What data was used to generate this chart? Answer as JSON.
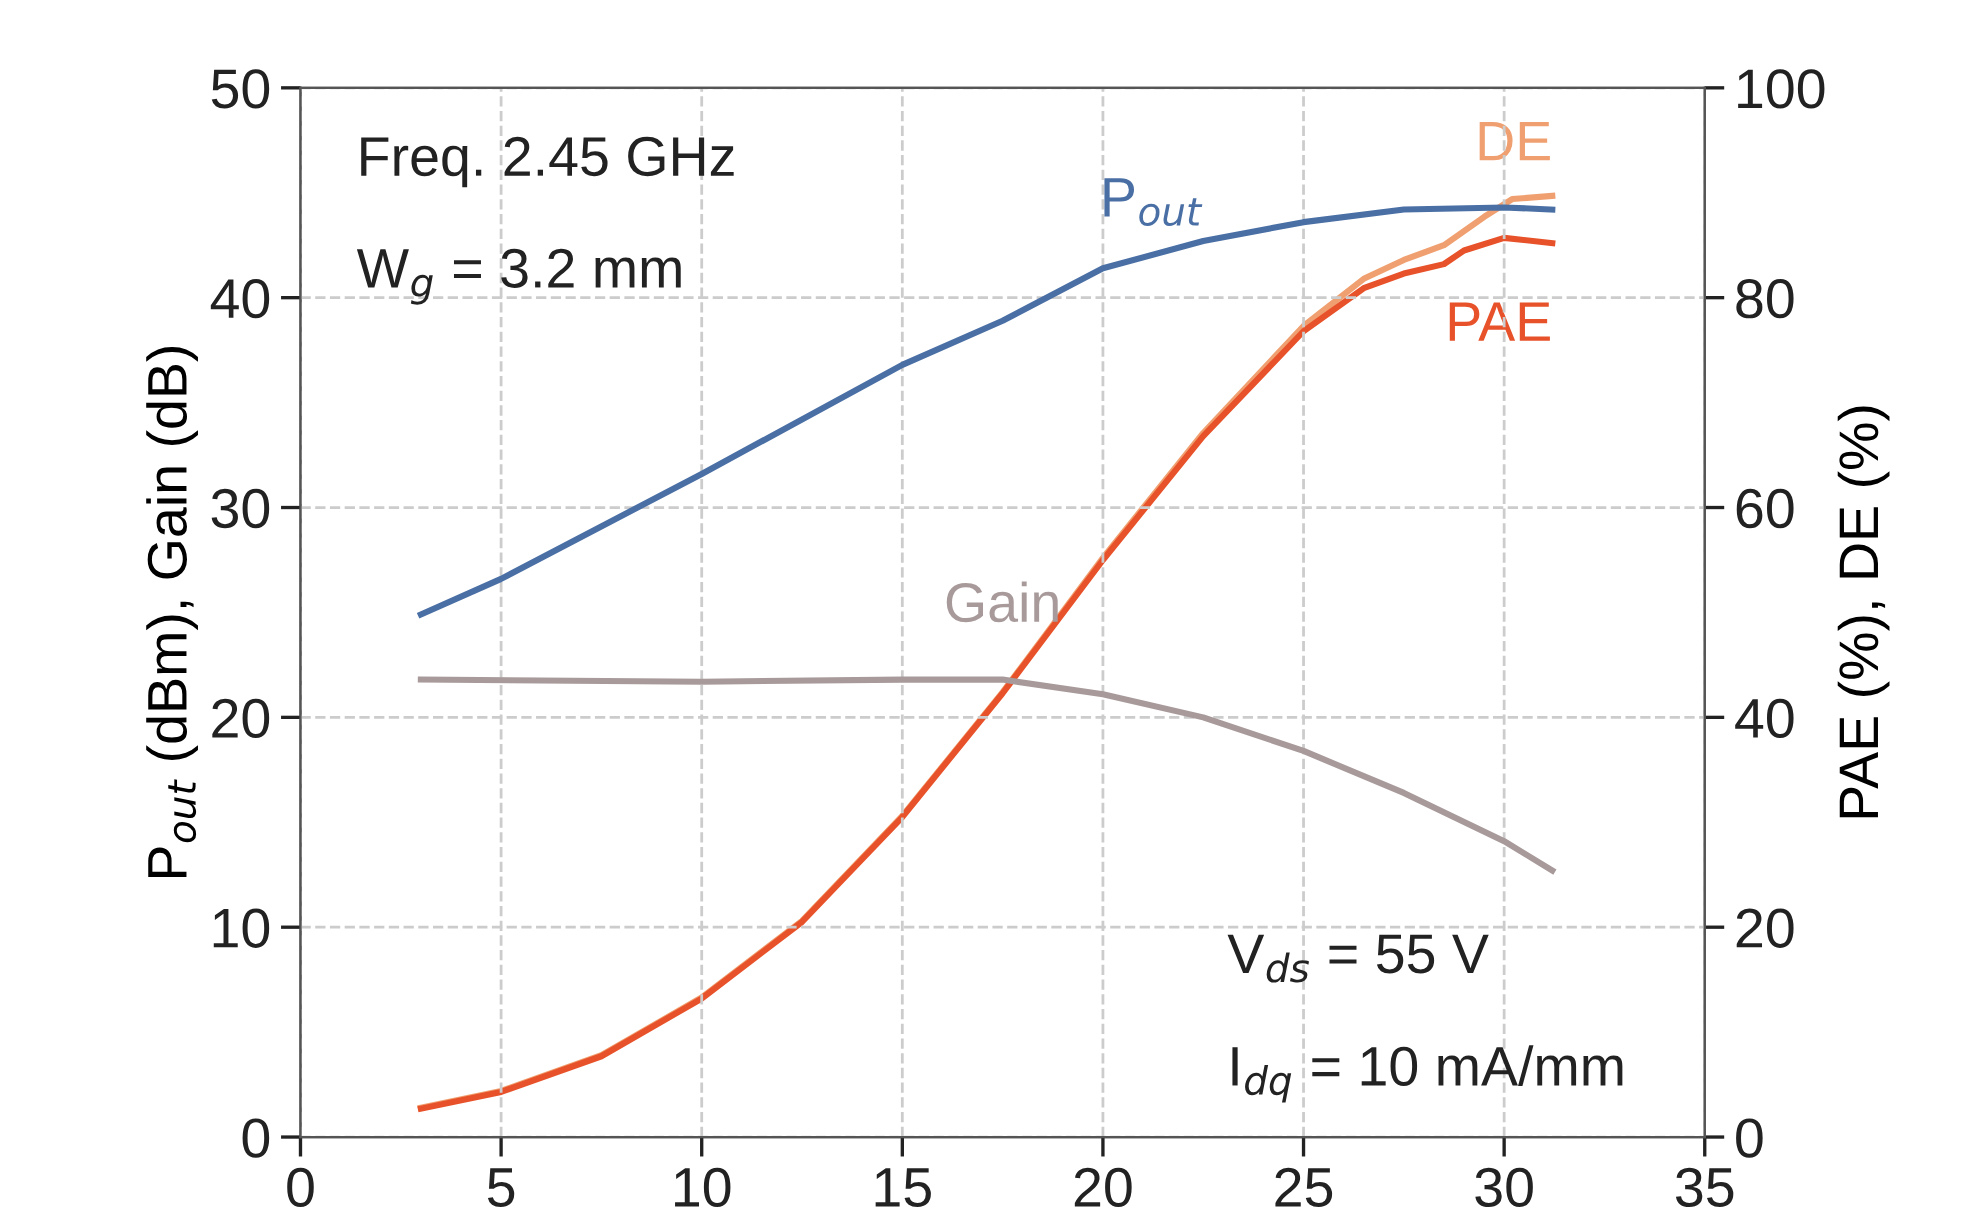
{
  "chart_data": {
    "type": "line",
    "ylabel": "P$_{out}$ (dBm), Gain (dB)",
    "y2label": "PAE (%), DE (%)",
    "xlim": [
      0,
      35
    ],
    "xticks": [
      0,
      5,
      10,
      15,
      20,
      25,
      30,
      35
    ],
    "ylim": [
      0,
      50
    ],
    "yticks": [
      0,
      10,
      20,
      30,
      40,
      50
    ],
    "y2lim": [
      0,
      100
    ],
    "y2ticks": [
      0,
      20,
      40,
      60,
      80,
      100
    ],
    "grid": true,
    "line_style": "solid",
    "legend": false,
    "annotations": [
      "Freq. 2.45 GHz",
      "W$_{g}$ = 3.2 mm",
      "V$_{ds}$ = 55 V",
      "I$_{dq}$ = 10 mA/mm"
    ],
    "series": [
      {
        "name": "P$_{out}$",
        "color": "#4a6fa5",
        "x": [
          3,
          5,
          10,
          15,
          17.5,
          20,
          22.5,
          25,
          27.5,
          30,
          31.2
        ],
        "values": [
          24.9,
          26.6,
          31.6,
          36.8,
          38.9,
          41.4,
          42.7,
          43.6,
          44.2,
          44.3,
          44.2
        ]
      },
      {
        "name": "Gain",
        "color": "#a89a9a",
        "x": [
          3,
          10,
          15,
          17.5,
          20,
          22.5,
          25,
          27.5,
          30,
          31.2
        ],
        "values": [
          21.8,
          21.7,
          21.8,
          21.8,
          21.1,
          20.0,
          18.4,
          16.4,
          14.1,
          12.7
        ]
      },
      {
        "name": "DE",
        "color": "#f0a070",
        "axis": "y2",
        "x": [
          3,
          5,
          7.5,
          10,
          12.5,
          15,
          17.5,
          20,
          22.5,
          25,
          26.5,
          27.5,
          28.5,
          29.5,
          30.2,
          31.2
        ],
        "values": [
          2.8,
          4.4,
          7.8,
          13.3,
          20.6,
          30.6,
          42.4,
          55.2,
          67.1,
          77.3,
          81.8,
          83.6,
          85.0,
          87.7,
          89.4,
          89.7
        ]
      },
      {
        "name": "PAE",
        "color": "#e8522a",
        "axis": "y2",
        "x": [
          3,
          5,
          7.5,
          10,
          12.5,
          15,
          17.5,
          20,
          22.5,
          25,
          26.5,
          27.5,
          28.5,
          29,
          30,
          31.2
        ],
        "values": [
          2.7,
          4.3,
          7.7,
          13.2,
          20.5,
          30.5,
          42.3,
          55,
          66.8,
          76.8,
          80.9,
          82.3,
          83.2,
          84.5,
          85.7,
          85.2
        ]
      }
    ]
  }
}
